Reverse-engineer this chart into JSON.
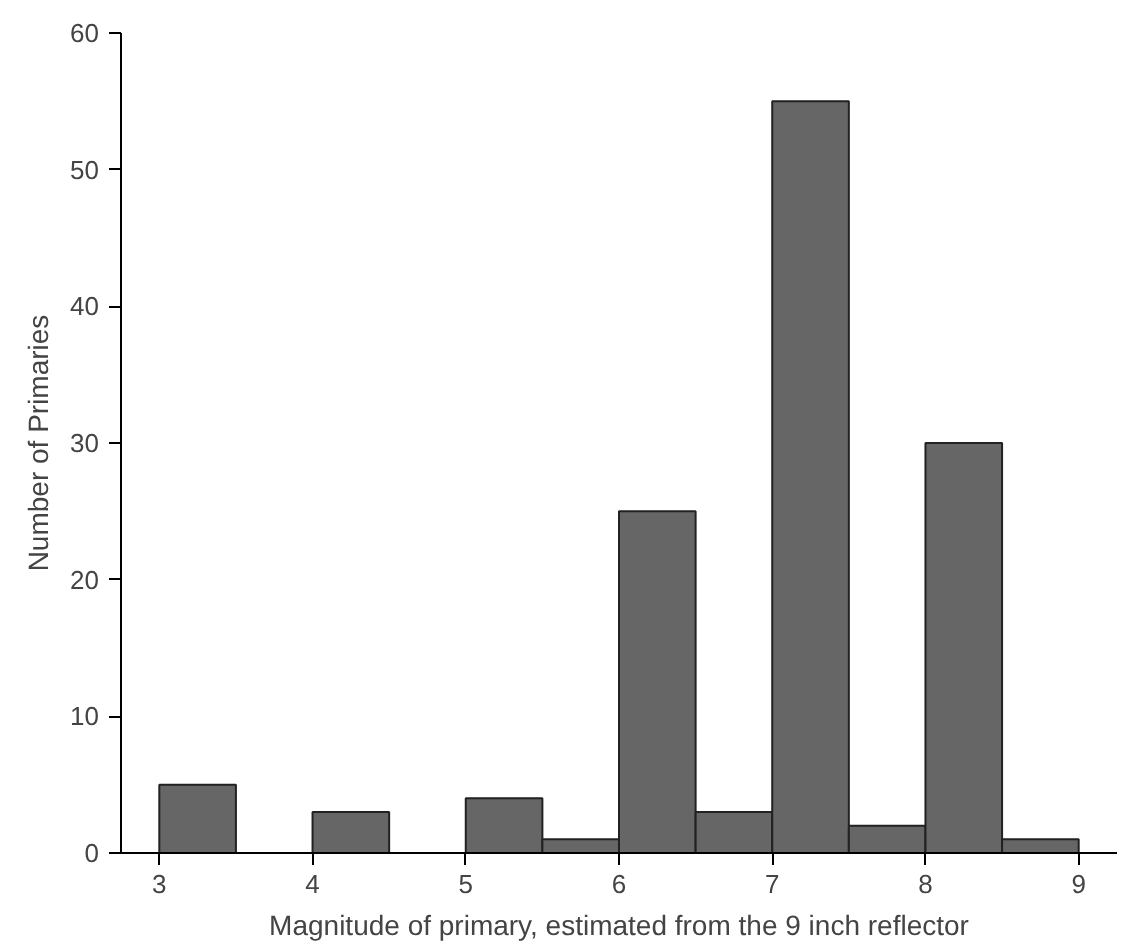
{
  "chart_data": {
    "type": "histogram",
    "xlabel": "Magnitude of primary, estimated from the 9 inch reflector",
    "ylabel": "Number of Primaries",
    "bins": [
      3,
      3.5,
      4,
      4.5,
      5,
      5.5,
      6,
      6.5,
      7,
      7.5,
      8,
      8.5,
      9
    ],
    "values": [
      5,
      0,
      3,
      0,
      4,
      1,
      25,
      3,
      55,
      2,
      30,
      1
    ],
    "color": "#666666",
    "xlim": [
      2.75,
      9.25
    ],
    "ylim": [
      0,
      60
    ],
    "xticks": [
      3,
      4,
      5,
      6,
      7,
      8,
      9
    ],
    "yticks": [
      0,
      10,
      20,
      30,
      40,
      50,
      60
    ],
    "grid": false
  }
}
